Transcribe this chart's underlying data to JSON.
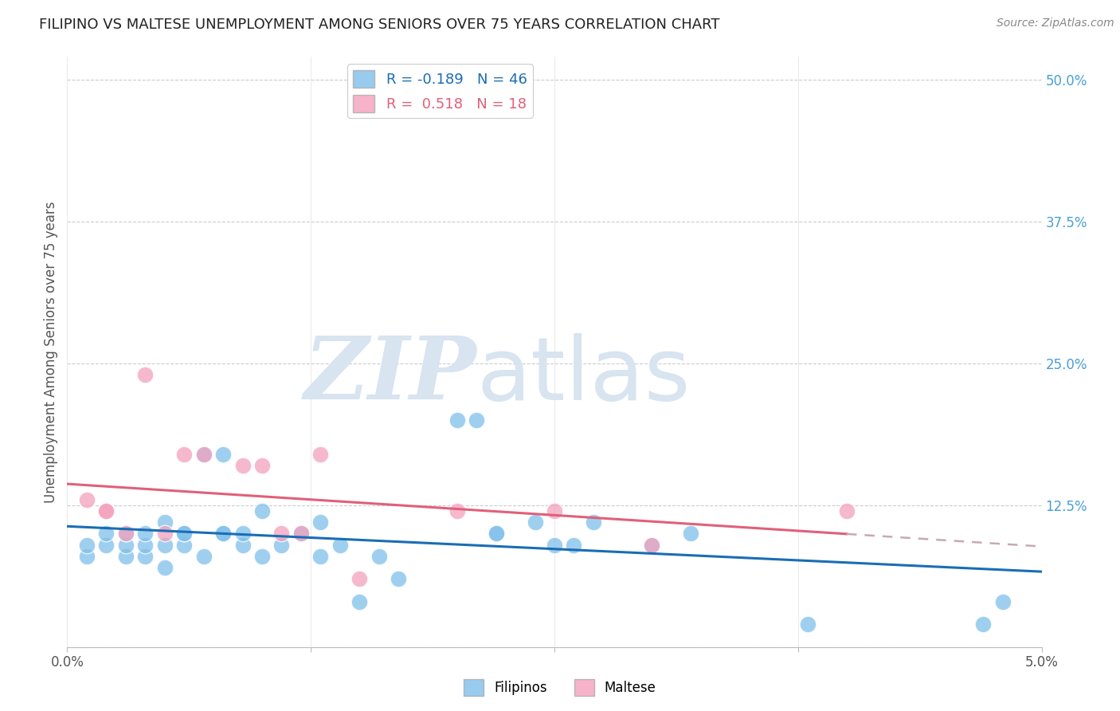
{
  "title": "FILIPINO VS MALTESE UNEMPLOYMENT AMONG SENIORS OVER 75 YEARS CORRELATION CHART",
  "source": "Source: ZipAtlas.com",
  "ylabel": "Unemployment Among Seniors over 75 years",
  "xlim": [
    0.0,
    0.05
  ],
  "ylim": [
    0.0,
    0.52
  ],
  "yticks_right": [
    0.0,
    0.125,
    0.25,
    0.375,
    0.5
  ],
  "yticklabels_right": [
    "",
    "12.5%",
    "25.0%",
    "37.5%",
    "50.0%"
  ],
  "filipino_color": "#7fbfea",
  "maltese_color": "#f4a0bc",
  "filipino_line_color": "#1a6db5",
  "maltese_line_color": "#e0607a",
  "maltese_dashed_color": "#c8a8b8",
  "watermark_color": "#d8e4f0",
  "filipino_x": [
    0.001,
    0.001,
    0.002,
    0.002,
    0.003,
    0.003,
    0.003,
    0.004,
    0.004,
    0.004,
    0.005,
    0.005,
    0.005,
    0.006,
    0.006,
    0.006,
    0.007,
    0.007,
    0.008,
    0.008,
    0.008,
    0.009,
    0.009,
    0.01,
    0.01,
    0.011,
    0.012,
    0.013,
    0.013,
    0.014,
    0.015,
    0.016,
    0.017,
    0.02,
    0.021,
    0.022,
    0.022,
    0.024,
    0.025,
    0.026,
    0.027,
    0.03,
    0.032,
    0.038,
    0.047,
    0.048
  ],
  "filipino_y": [
    0.08,
    0.09,
    0.09,
    0.1,
    0.08,
    0.09,
    0.1,
    0.08,
    0.09,
    0.1,
    0.07,
    0.09,
    0.11,
    0.09,
    0.1,
    0.1,
    0.08,
    0.17,
    0.1,
    0.17,
    0.1,
    0.09,
    0.1,
    0.08,
    0.12,
    0.09,
    0.1,
    0.08,
    0.11,
    0.09,
    0.04,
    0.08,
    0.06,
    0.2,
    0.2,
    0.1,
    0.1,
    0.11,
    0.09,
    0.09,
    0.11,
    0.09,
    0.1,
    0.02,
    0.02,
    0.04
  ],
  "maltese_x": [
    0.001,
    0.002,
    0.002,
    0.003,
    0.004,
    0.005,
    0.006,
    0.007,
    0.009,
    0.01,
    0.011,
    0.012,
    0.013,
    0.015,
    0.02,
    0.025,
    0.03,
    0.04
  ],
  "maltese_y": [
    0.13,
    0.12,
    0.12,
    0.1,
    0.24,
    0.1,
    0.17,
    0.17,
    0.16,
    0.16,
    0.1,
    0.1,
    0.17,
    0.06,
    0.12,
    0.12,
    0.09,
    0.12
  ],
  "fil_R": -0.189,
  "fil_N": 46,
  "mal_R": 0.518,
  "mal_N": 18
}
